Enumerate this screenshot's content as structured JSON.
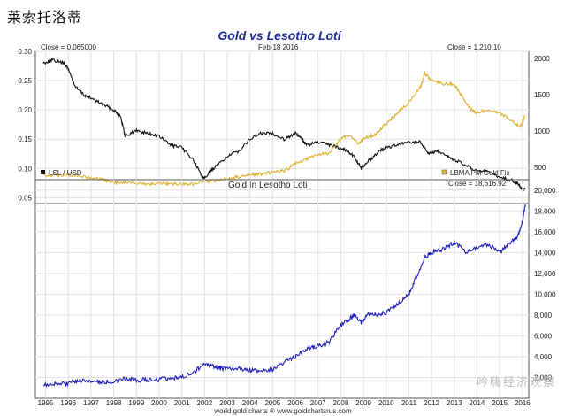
{
  "header": {
    "title": "莱索托洛蒂"
  },
  "watermark": {
    "text": "吟嗨经济观察"
  },
  "chart_data": [
    {
      "type": "line",
      "title": "Gold vs Lesotho Loti",
      "date_label": "Feb-18 2016",
      "left_close": "Close = 0.065000",
      "right_close": "Close = 1,210.10",
      "y_left": {
        "ticks": [
          "0.30",
          "0.25",
          "0.20",
          "0.15",
          "0.10",
          "0.05"
        ],
        "range": [
          0.04,
          0.3
        ]
      },
      "y_right": {
        "ticks": [
          "2000",
          "1500",
          "1000",
          "500"
        ],
        "range": [
          0,
          2100
        ]
      },
      "legend_left": "LSL / USD",
      "legend_right": "LBMA PM Gold Fix",
      "series": [
        {
          "name": "LSL / USD",
          "axis": "left",
          "color": "#111111",
          "x": [
            1994.9,
            1995.3,
            1995.8,
            1996.0,
            1996.3,
            1996.7,
            1997.0,
            1997.5,
            1998.0,
            1998.3,
            1998.5,
            1999.0,
            1999.5,
            2000.0,
            2000.5,
            2001.0,
            2001.5,
            2001.9,
            2002.0,
            2002.4,
            2003.0,
            2003.5,
            2004.0,
            2004.5,
            2005.0,
            2005.5,
            2006.0,
            2006.3,
            2006.5,
            2007.0,
            2007.5,
            2008.0,
            2008.3,
            2008.6,
            2008.9,
            2009.0,
            2009.3,
            2009.7,
            2010.0,
            2010.5,
            2011.0,
            2011.5,
            2011.9,
            2012.2,
            2012.7,
            2013.0,
            2013.5,
            2014.0,
            2014.5,
            2015.0,
            2015.5,
            2015.8,
            2016.0,
            2016.13
          ],
          "values": [
            0.28,
            0.285,
            0.28,
            0.27,
            0.24,
            0.225,
            0.22,
            0.21,
            0.2,
            0.19,
            0.155,
            0.165,
            0.16,
            0.155,
            0.14,
            0.135,
            0.115,
            0.085,
            0.085,
            0.1,
            0.12,
            0.13,
            0.15,
            0.16,
            0.16,
            0.15,
            0.16,
            0.15,
            0.14,
            0.145,
            0.14,
            0.135,
            0.13,
            0.12,
            0.1,
            0.105,
            0.115,
            0.13,
            0.135,
            0.14,
            0.145,
            0.145,
            0.125,
            0.13,
            0.12,
            0.115,
            0.105,
            0.095,
            0.095,
            0.085,
            0.08,
            0.075,
            0.063,
            0.065
          ]
        },
        {
          "name": "LBMA PM Gold Fix",
          "axis": "right",
          "color": "#e0b030",
          "x": [
            1994.9,
            1995.5,
            1996.0,
            1996.5,
            1997.0,
            1997.5,
            1998.0,
            1998.5,
            1999.0,
            1999.5,
            2000.0,
            2000.5,
            2001.0,
            2001.5,
            2002.0,
            2002.5,
            2003.0,
            2003.5,
            2004.0,
            2004.5,
            2005.0,
            2005.5,
            2006.0,
            2006.5,
            2007.0,
            2007.5,
            2008.0,
            2008.3,
            2008.8,
            2009.0,
            2009.5,
            2010.0,
            2010.5,
            2011.0,
            2011.5,
            2011.7,
            2012.0,
            2012.5,
            2013.0,
            2013.3,
            2013.7,
            2014.0,
            2014.5,
            2015.0,
            2015.5,
            2015.9,
            2016.13
          ],
          "values": [
            385,
            385,
            395,
            385,
            350,
            330,
            295,
            290,
            285,
            270,
            280,
            275,
            265,
            270,
            300,
            320,
            350,
            370,
            400,
            410,
            430,
            450,
            550,
            620,
            670,
            700,
            890,
            950,
            820,
            900,
            950,
            1100,
            1250,
            1400,
            1600,
            1800,
            1700,
            1650,
            1650,
            1500,
            1300,
            1250,
            1300,
            1250,
            1150,
            1060,
            1210
          ]
        }
      ]
    },
    {
      "type": "line",
      "title": "Gold In Lesotho Loti",
      "close_label": "Close = 18,616.92",
      "y_right": {
        "ticks": [
          "20,000",
          "18,000",
          "16,000",
          "14,000",
          "12,000",
          "10,000",
          "8,000",
          "6,000",
          "4,000",
          "2,000"
        ],
        "range": [
          0,
          21000
        ]
      },
      "x_ticks": [
        "1995",
        "1996",
        "1997",
        "1998",
        "1999",
        "2000",
        "2001",
        "2002",
        "2003",
        "2004",
        "2005",
        "2006",
        "2007",
        "2008",
        "2009",
        "2010",
        "2011",
        "2012",
        "2013",
        "2014",
        "2015",
        "2016"
      ],
      "footer": "world gold charts ® www.goldchartsrus.com",
      "series": [
        {
          "name": "Gold In Lesotho Loti",
          "color": "#1e1ec0",
          "x": [
            1994.9,
            1995.5,
            1996.0,
            1996.5,
            1997.0,
            1997.5,
            1998.0,
            1998.5,
            1999.0,
            1999.5,
            2000.0,
            2000.5,
            2001.0,
            2001.5,
            2002.0,
            2002.3,
            2002.7,
            2003.0,
            2003.5,
            2004.0,
            2004.5,
            2005.0,
            2005.5,
            2006.0,
            2006.5,
            2007.0,
            2007.5,
            2008.0,
            2008.3,
            2008.6,
            2008.9,
            2009.2,
            2009.6,
            2010.0,
            2010.5,
            2011.0,
            2011.3,
            2011.7,
            2012.0,
            2012.5,
            2013.0,
            2013.5,
            2014.0,
            2014.5,
            2015.0,
            2015.5,
            2015.8,
            2016.0,
            2016.13
          ],
          "values": [
            1350,
            1350,
            1450,
            1700,
            1600,
            1600,
            1550,
            1900,
            1750,
            1750,
            1800,
            1950,
            2050,
            2400,
            3400,
            3100,
            2900,
            2800,
            2850,
            2700,
            2600,
            2800,
            3500,
            4000,
            4800,
            5000,
            5400,
            7000,
            7500,
            8000,
            7300,
            8200,
            8000,
            8200,
            9000,
            10000,
            11500,
            13500,
            14000,
            14300,
            15000,
            14000,
            14500,
            14800,
            14000,
            15000,
            15500,
            17000,
            18617
          ]
        }
      ]
    }
  ]
}
